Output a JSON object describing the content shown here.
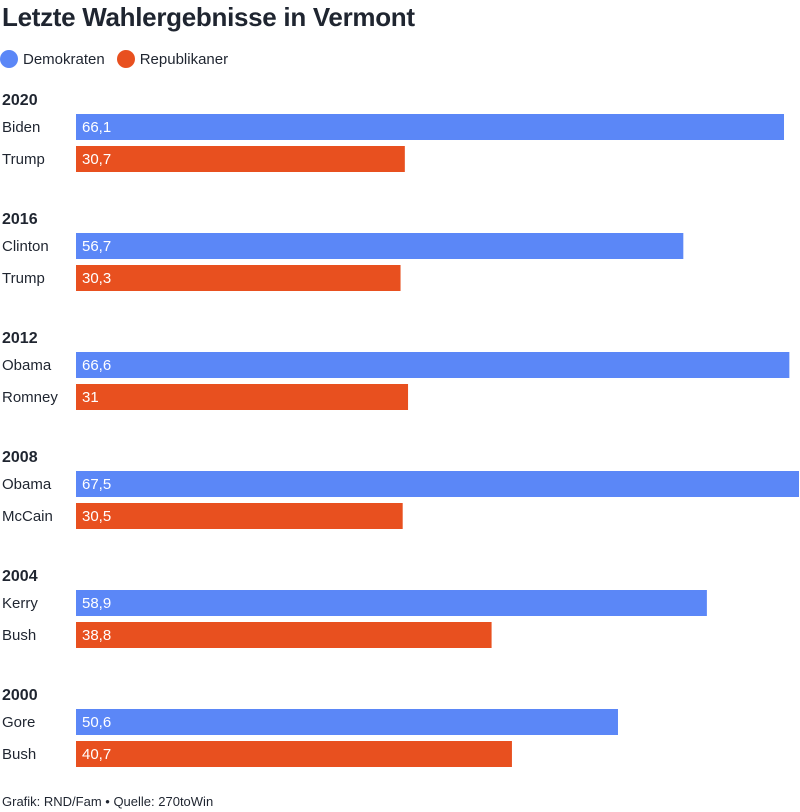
{
  "title": "Letzte Wahlergebnisse in Vermont",
  "legend": [
    {
      "label": "Demokraten",
      "color": "#5b87f7"
    },
    {
      "label": "Republikaner",
      "color": "#e8501f"
    }
  ],
  "footer": "Grafik: RND/Fam • Quelle: 270toWin",
  "chart_data": {
    "type": "bar",
    "orientation": "horizontal",
    "xlim": [
      0,
      67.5
    ],
    "groups": [
      {
        "year": "2020",
        "candidates": [
          {
            "name": "Biden",
            "party": "Demokraten",
            "value": 66.1,
            "label": "66,1"
          },
          {
            "name": "Trump",
            "party": "Republikaner",
            "value": 30.7,
            "label": "30,7"
          }
        ]
      },
      {
        "year": "2016",
        "candidates": [
          {
            "name": "Clinton",
            "party": "Demokraten",
            "value": 56.7,
            "label": "56,7"
          },
          {
            "name": "Trump",
            "party": "Republikaner",
            "value": 30.3,
            "label": "30,3"
          }
        ]
      },
      {
        "year": "2012",
        "candidates": [
          {
            "name": "Obama",
            "party": "Demokraten",
            "value": 66.6,
            "label": "66,6"
          },
          {
            "name": "Romney",
            "party": "Republikaner",
            "value": 31,
            "label": "31"
          }
        ]
      },
      {
        "year": "2008",
        "candidates": [
          {
            "name": "Obama",
            "party": "Demokraten",
            "value": 67.5,
            "label": "67,5"
          },
          {
            "name": "McCain",
            "party": "Republikaner",
            "value": 30.5,
            "label": "30,5"
          }
        ]
      },
      {
        "year": "2004",
        "candidates": [
          {
            "name": "Kerry",
            "party": "Demokraten",
            "value": 58.9,
            "label": "58,9"
          },
          {
            "name": "Bush",
            "party": "Republikaner",
            "value": 38.8,
            "label": "38,8"
          }
        ]
      },
      {
        "year": "2000",
        "candidates": [
          {
            "name": "Gore",
            "party": "Demokraten",
            "value": 50.6,
            "label": "50,6"
          },
          {
            "name": "Bush",
            "party": "Republikaner",
            "value": 40.7,
            "label": "40,7"
          }
        ]
      }
    ]
  }
}
